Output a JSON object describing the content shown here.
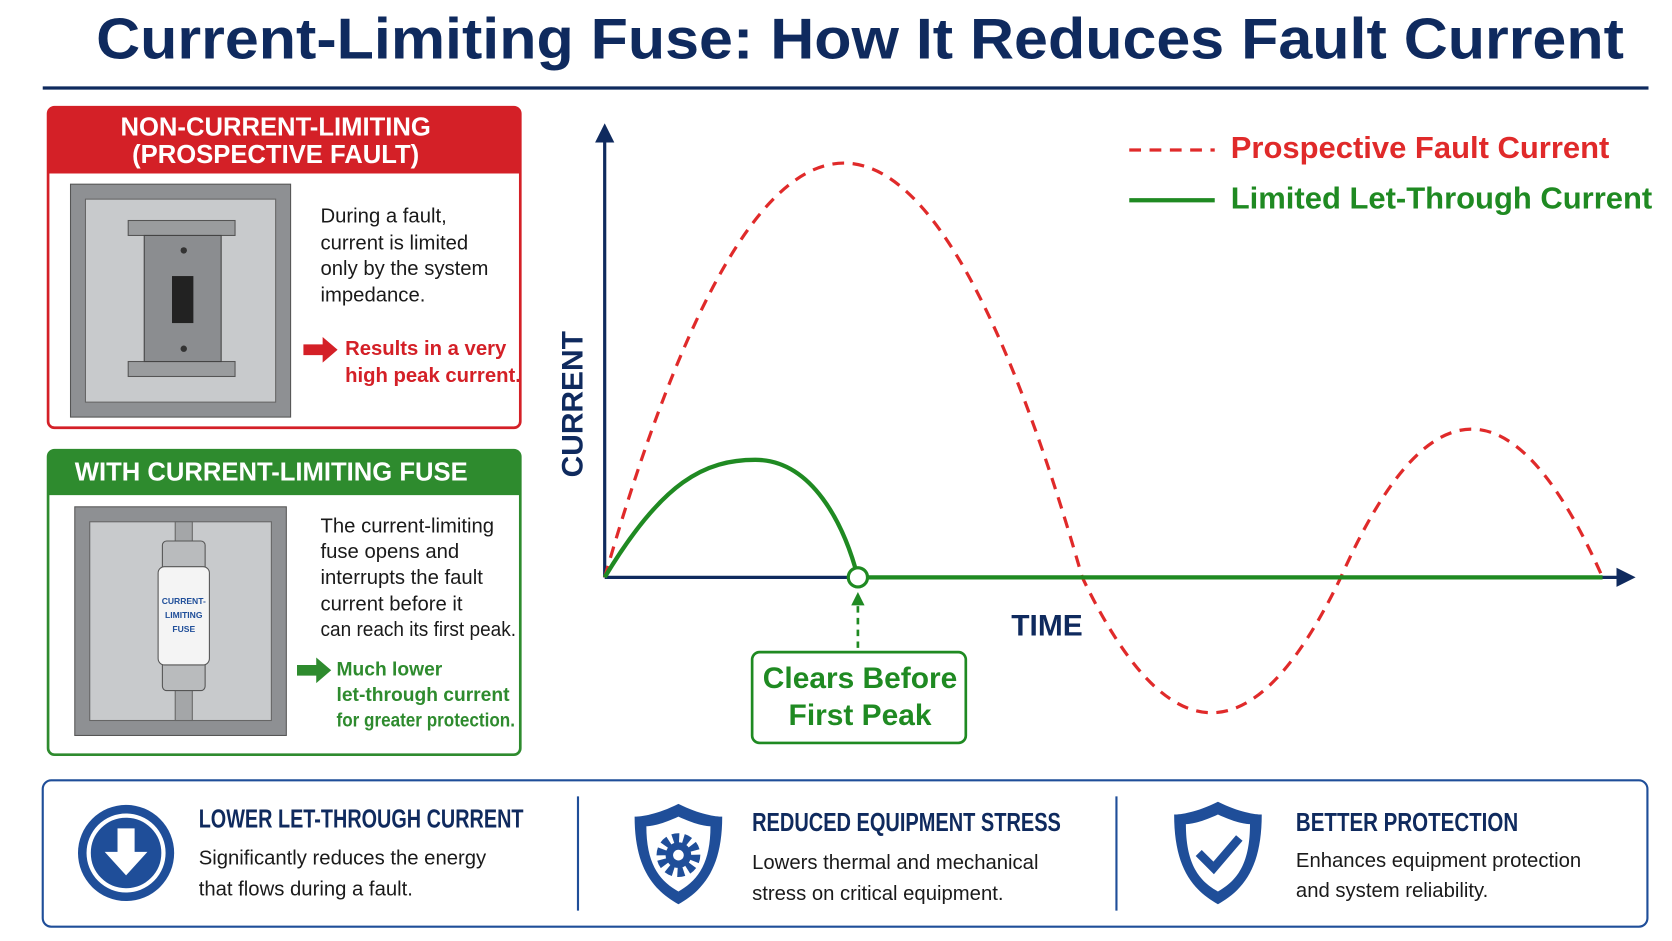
{
  "title": "Current-Limiting Fuse: How It Reduces Fault Current",
  "panels": [
    {
      "heading_lines": [
        "NON-CURRENT-LIMITING",
        "(PROSPECTIVE FAULT)"
      ],
      "description_lines": [
        "During a fault,",
        "current is limited",
        "only by the system",
        "impedance."
      ],
      "result_lines": [
        "Results in a very",
        "high peak current."
      ]
    },
    {
      "heading_lines": [
        "WITH CURRENT-LIMITING FUSE"
      ],
      "fuse_label_lines": [
        "CURRENT-",
        "LIMITING",
        "FUSE"
      ],
      "description_lines": [
        "The current-limiting",
        "fuse opens and",
        "interrupts the fault",
        "current before it",
        "can reach its first peak."
      ],
      "result_lines": [
        "Much lower",
        "let-through current",
        "for greater protection."
      ]
    }
  ],
  "graph": {
    "y_axis_label": "CURRENT",
    "x_axis_label": "TIME",
    "legend": [
      {
        "name": "Prospective Fault Current",
        "color": "#e02a2a"
      },
      {
        "name": "Limited Let-Through Current",
        "color": "#1f8a22"
      }
    ],
    "callout_lines": [
      "Clears Before",
      "First Peak"
    ]
  },
  "benefits": [
    {
      "title": "LOWER LET-THROUGH CURRENT",
      "description_lines": [
        "Significantly reduces the energy",
        "that flows during a fault."
      ]
    },
    {
      "title": "REDUCED EQUIPMENT STRESS",
      "description_lines": [
        "Lowers thermal and mechanical",
        "stress on critical equipment."
      ]
    },
    {
      "title": "BETTER PROTECTION",
      "description_lines": [
        "Enhances equipment protection",
        "and system reliability."
      ]
    }
  ]
}
